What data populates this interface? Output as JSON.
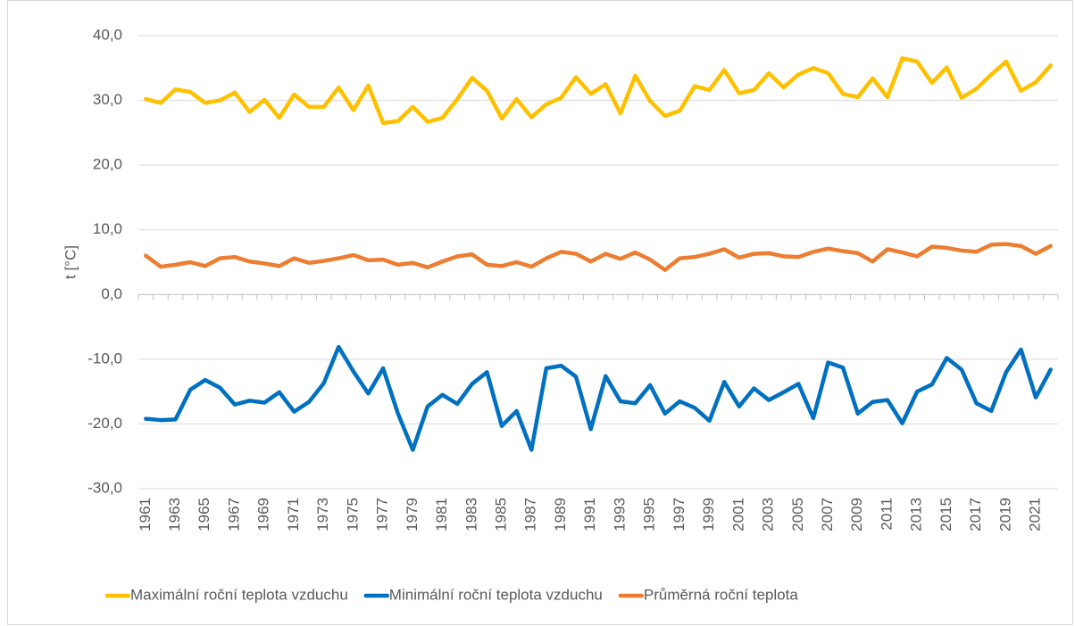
{
  "chart_data": {
    "type": "line",
    "y_label": "t [°C]",
    "categories": [
      "1961",
      null,
      "1963",
      null,
      "1965",
      null,
      "1967",
      null,
      "1969",
      null,
      "1971",
      null,
      "1973",
      null,
      "1975",
      null,
      "1977",
      null,
      "1979",
      null,
      "1981",
      null,
      "1983",
      null,
      "1985",
      null,
      "1987",
      null,
      "1989",
      null,
      "1991",
      null,
      "1993",
      null,
      "1995",
      null,
      "1997",
      null,
      "1999",
      null,
      "2001",
      null,
      "2003",
      null,
      "2005",
      null,
      "2007",
      null,
      "2009",
      null,
      "2011",
      null,
      "2013",
      null,
      "2015",
      null,
      "2017",
      null,
      "2019",
      null,
      "2021",
      null
    ],
    "series": [
      {
        "name": "Maximální roční teplota vzduchu",
        "color": "#ffc000",
        "values": [
          30.2,
          29.6,
          31.7,
          31.3,
          29.6,
          30.0,
          31.2,
          28.2,
          30.1,
          27.3,
          30.9,
          29.0,
          29.0,
          32.0,
          28.5,
          32.3,
          26.5,
          26.8,
          29.0,
          26.7,
          27.3,
          30.2,
          33.5,
          31.5,
          27.2,
          30.2,
          27.4,
          29.4,
          30.4,
          33.6,
          31.0,
          32.5,
          28.0,
          33.8,
          29.9,
          27.6,
          28.4,
          32.2,
          31.6,
          34.7,
          31.1,
          31.6,
          34.2,
          32.0,
          34.0,
          35.0,
          34.2,
          31.0,
          30.5,
          33.4,
          30.5,
          36.5,
          36.0,
          32.7,
          35.1,
          30.4,
          31.8,
          34.0,
          36.0,
          31.5,
          32.8,
          35.4
        ]
      },
      {
        "name": "Minimální roční teplota vzduchu",
        "color": "#0070c0",
        "values": [
          -19.2,
          -19.4,
          -19.3,
          -14.7,
          -13.2,
          -14.4,
          -17.0,
          -16.4,
          -16.7,
          -15.1,
          -18.1,
          -16.6,
          -13.7,
          -8.1,
          -11.9,
          -15.3,
          -11.4,
          -18.4,
          -24.0,
          -17.3,
          -15.5,
          -16.9,
          -13.8,
          -12.0,
          -20.3,
          -18.0,
          -24.0,
          -11.4,
          -11.0,
          -12.7,
          -20.8,
          -12.6,
          -16.5,
          -16.8,
          -14.0,
          -18.4,
          -16.5,
          -17.5,
          -19.5,
          -13.5,
          -17.3,
          -14.5,
          -16.3,
          -15.1,
          -13.8,
          -19.1,
          -10.5,
          -11.3,
          -18.4,
          -16.6,
          -16.3,
          -19.9,
          -15.0,
          -13.9,
          -9.8,
          -11.6,
          -16.8,
          -18.0,
          -12.0,
          -8.5,
          -15.9,
          -11.6
        ]
      },
      {
        "name": "Průměrná roční teplota",
        "color": "#ed7d31",
        "values": [
          6.0,
          4.3,
          4.6,
          5.0,
          4.4,
          5.6,
          5.8,
          5.1,
          4.8,
          4.4,
          5.6,
          4.9,
          5.2,
          5.6,
          6.1,
          5.3,
          5.4,
          4.6,
          4.9,
          4.2,
          5.1,
          5.9,
          6.2,
          4.6,
          4.4,
          5.0,
          4.3,
          5.6,
          6.6,
          6.3,
          5.1,
          6.3,
          5.5,
          6.5,
          5.4,
          3.8,
          5.6,
          5.8,
          6.3,
          7.0,
          5.7,
          6.3,
          6.4,
          5.9,
          5.8,
          6.6,
          7.1,
          6.7,
          6.4,
          5.1,
          7.0,
          6.5,
          5.9,
          7.4,
          7.2,
          6.8,
          6.6,
          7.7,
          7.8,
          7.5,
          6.3,
          7.5
        ]
      }
    ],
    "ylim": [
      -30,
      40
    ],
    "yticks": [
      {
        "value": -30,
        "label": "-30,0"
      },
      {
        "value": -20,
        "label": "-20,0"
      },
      {
        "value": -10,
        "label": "-10,0"
      },
      {
        "value": 0,
        "label": "0,0"
      },
      {
        "value": 10,
        "label": "10,0"
      },
      {
        "value": 20,
        "label": "20,0"
      },
      {
        "value": 30,
        "label": "30,0"
      },
      {
        "value": 40,
        "label": "40,0"
      }
    ],
    "grid": true,
    "legend": "bottom"
  }
}
